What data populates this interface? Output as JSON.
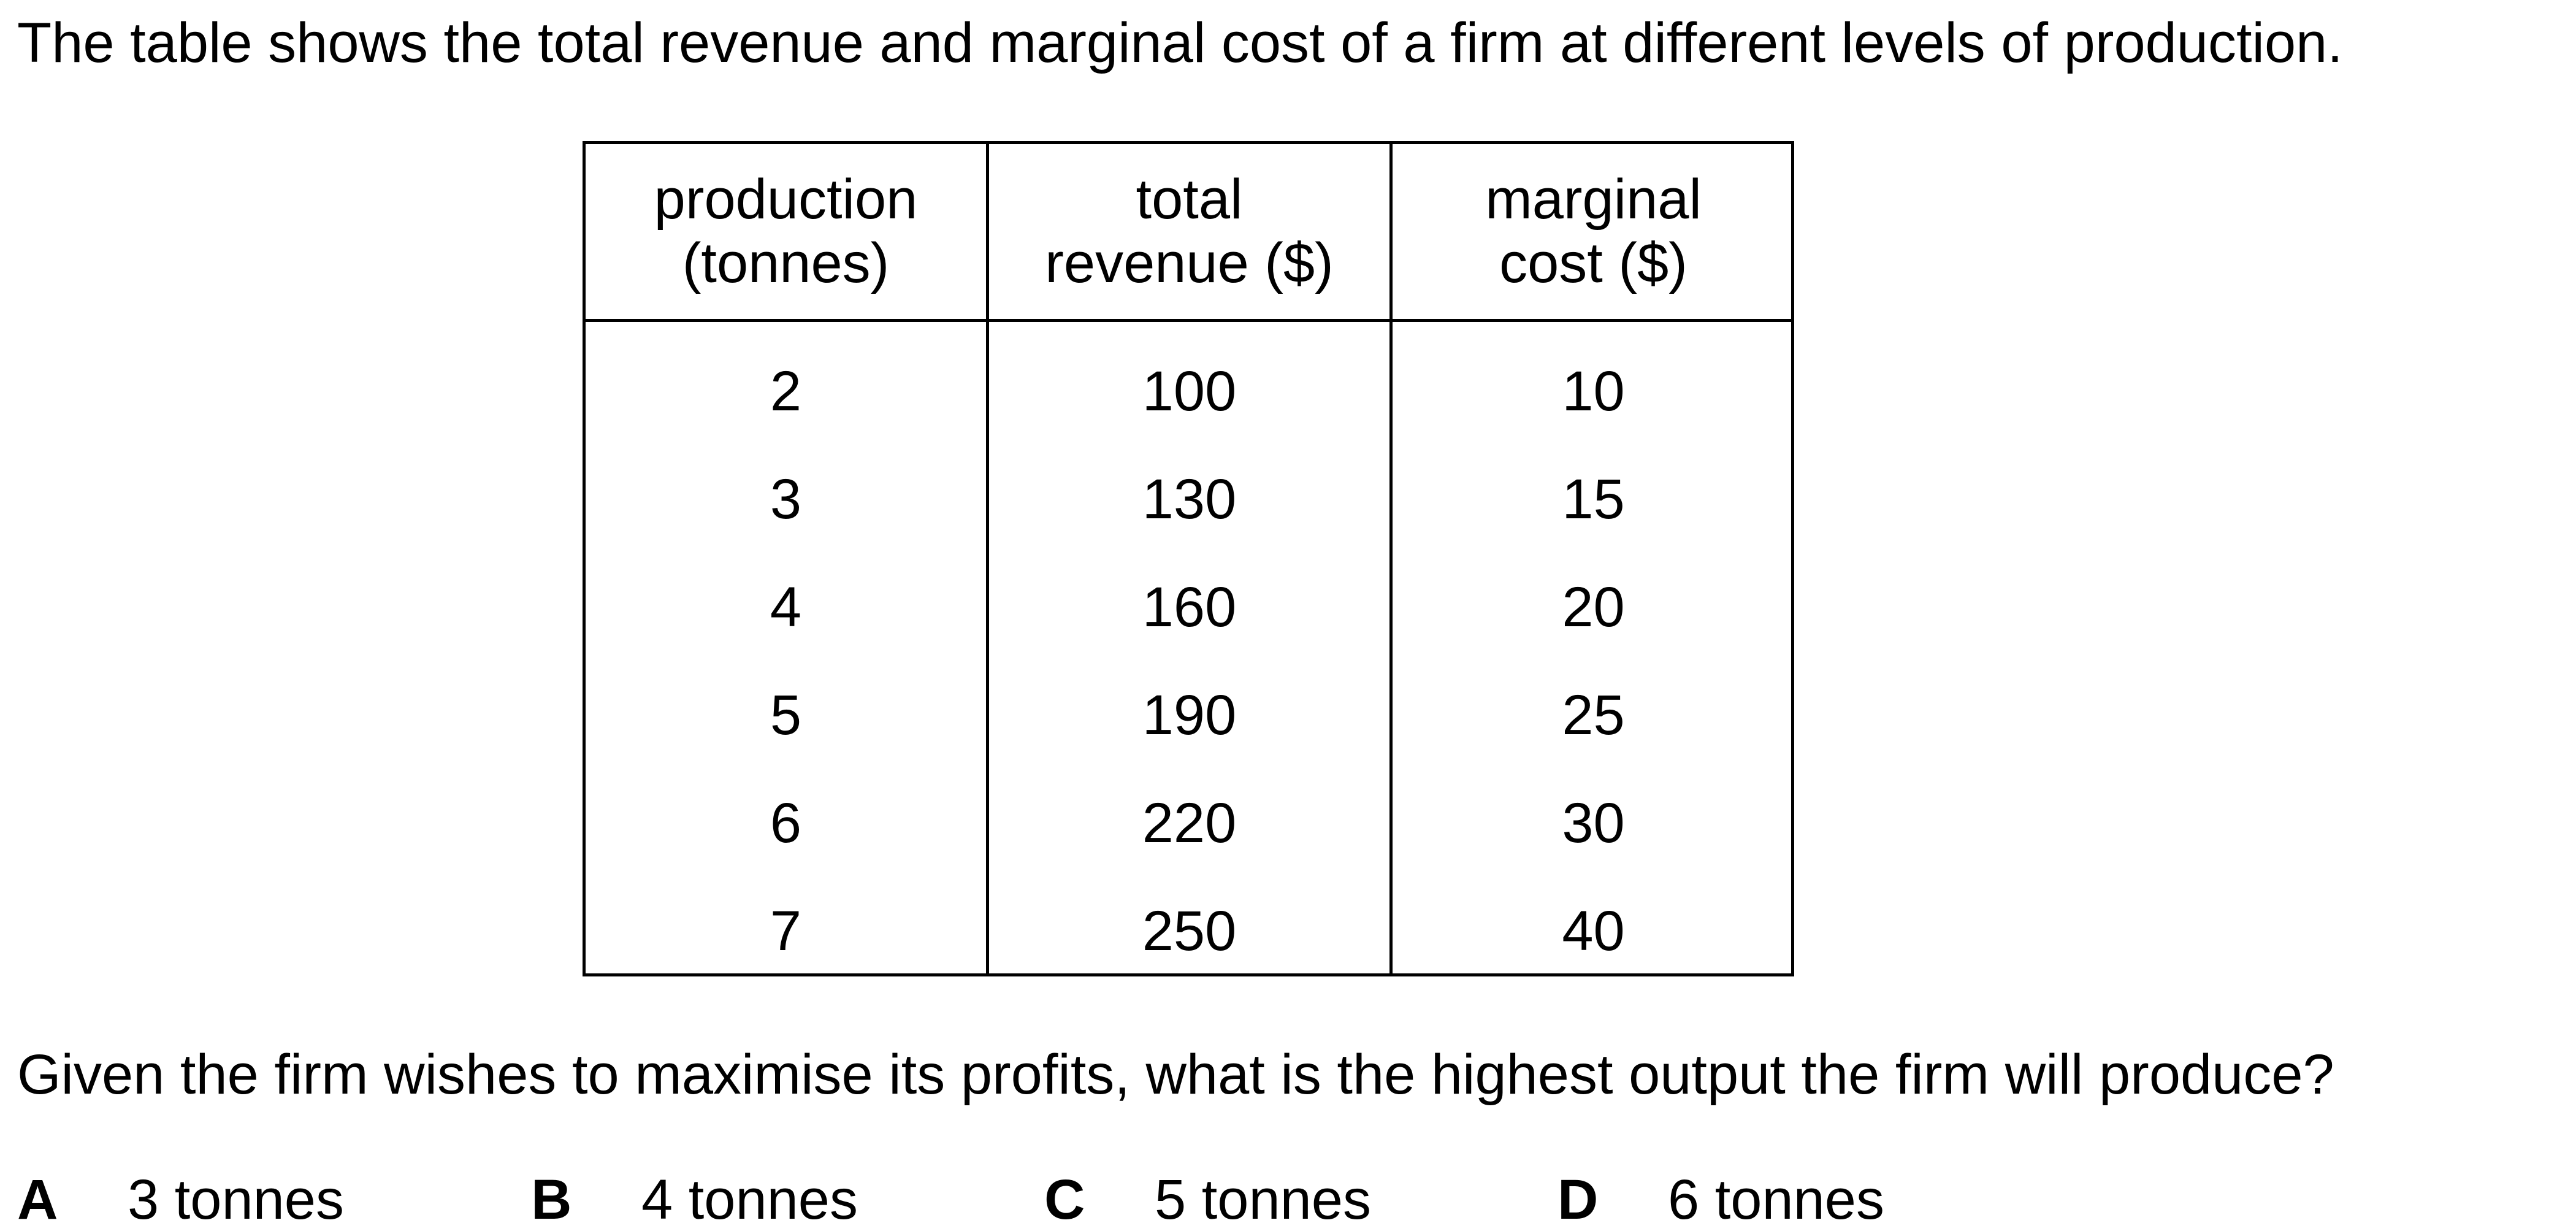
{
  "question": {
    "intro": "The table shows the total revenue and marginal cost of a firm at different levels of production.",
    "prompt": "Given the firm wishes to maximise its profits, what is the highest output the firm will produce?"
  },
  "table": {
    "headers": [
      [
        "production",
        "(tonnes)"
      ],
      [
        "total",
        "revenue ($)"
      ],
      [
        "marginal",
        "cost ($)"
      ]
    ],
    "rows": [
      [
        "2",
        "100",
        "10"
      ],
      [
        "3",
        "130",
        "15"
      ],
      [
        "4",
        "160",
        "20"
      ],
      [
        "5",
        "190",
        "25"
      ],
      [
        "6",
        "220",
        "30"
      ],
      [
        "7",
        "250",
        "40"
      ]
    ]
  },
  "options": [
    {
      "letter": "A",
      "text": "3 tonnes"
    },
    {
      "letter": "B",
      "text": "4 tonnes"
    },
    {
      "letter": "C",
      "text": "5 tonnes"
    },
    {
      "letter": "D",
      "text": "6 tonnes"
    }
  ]
}
